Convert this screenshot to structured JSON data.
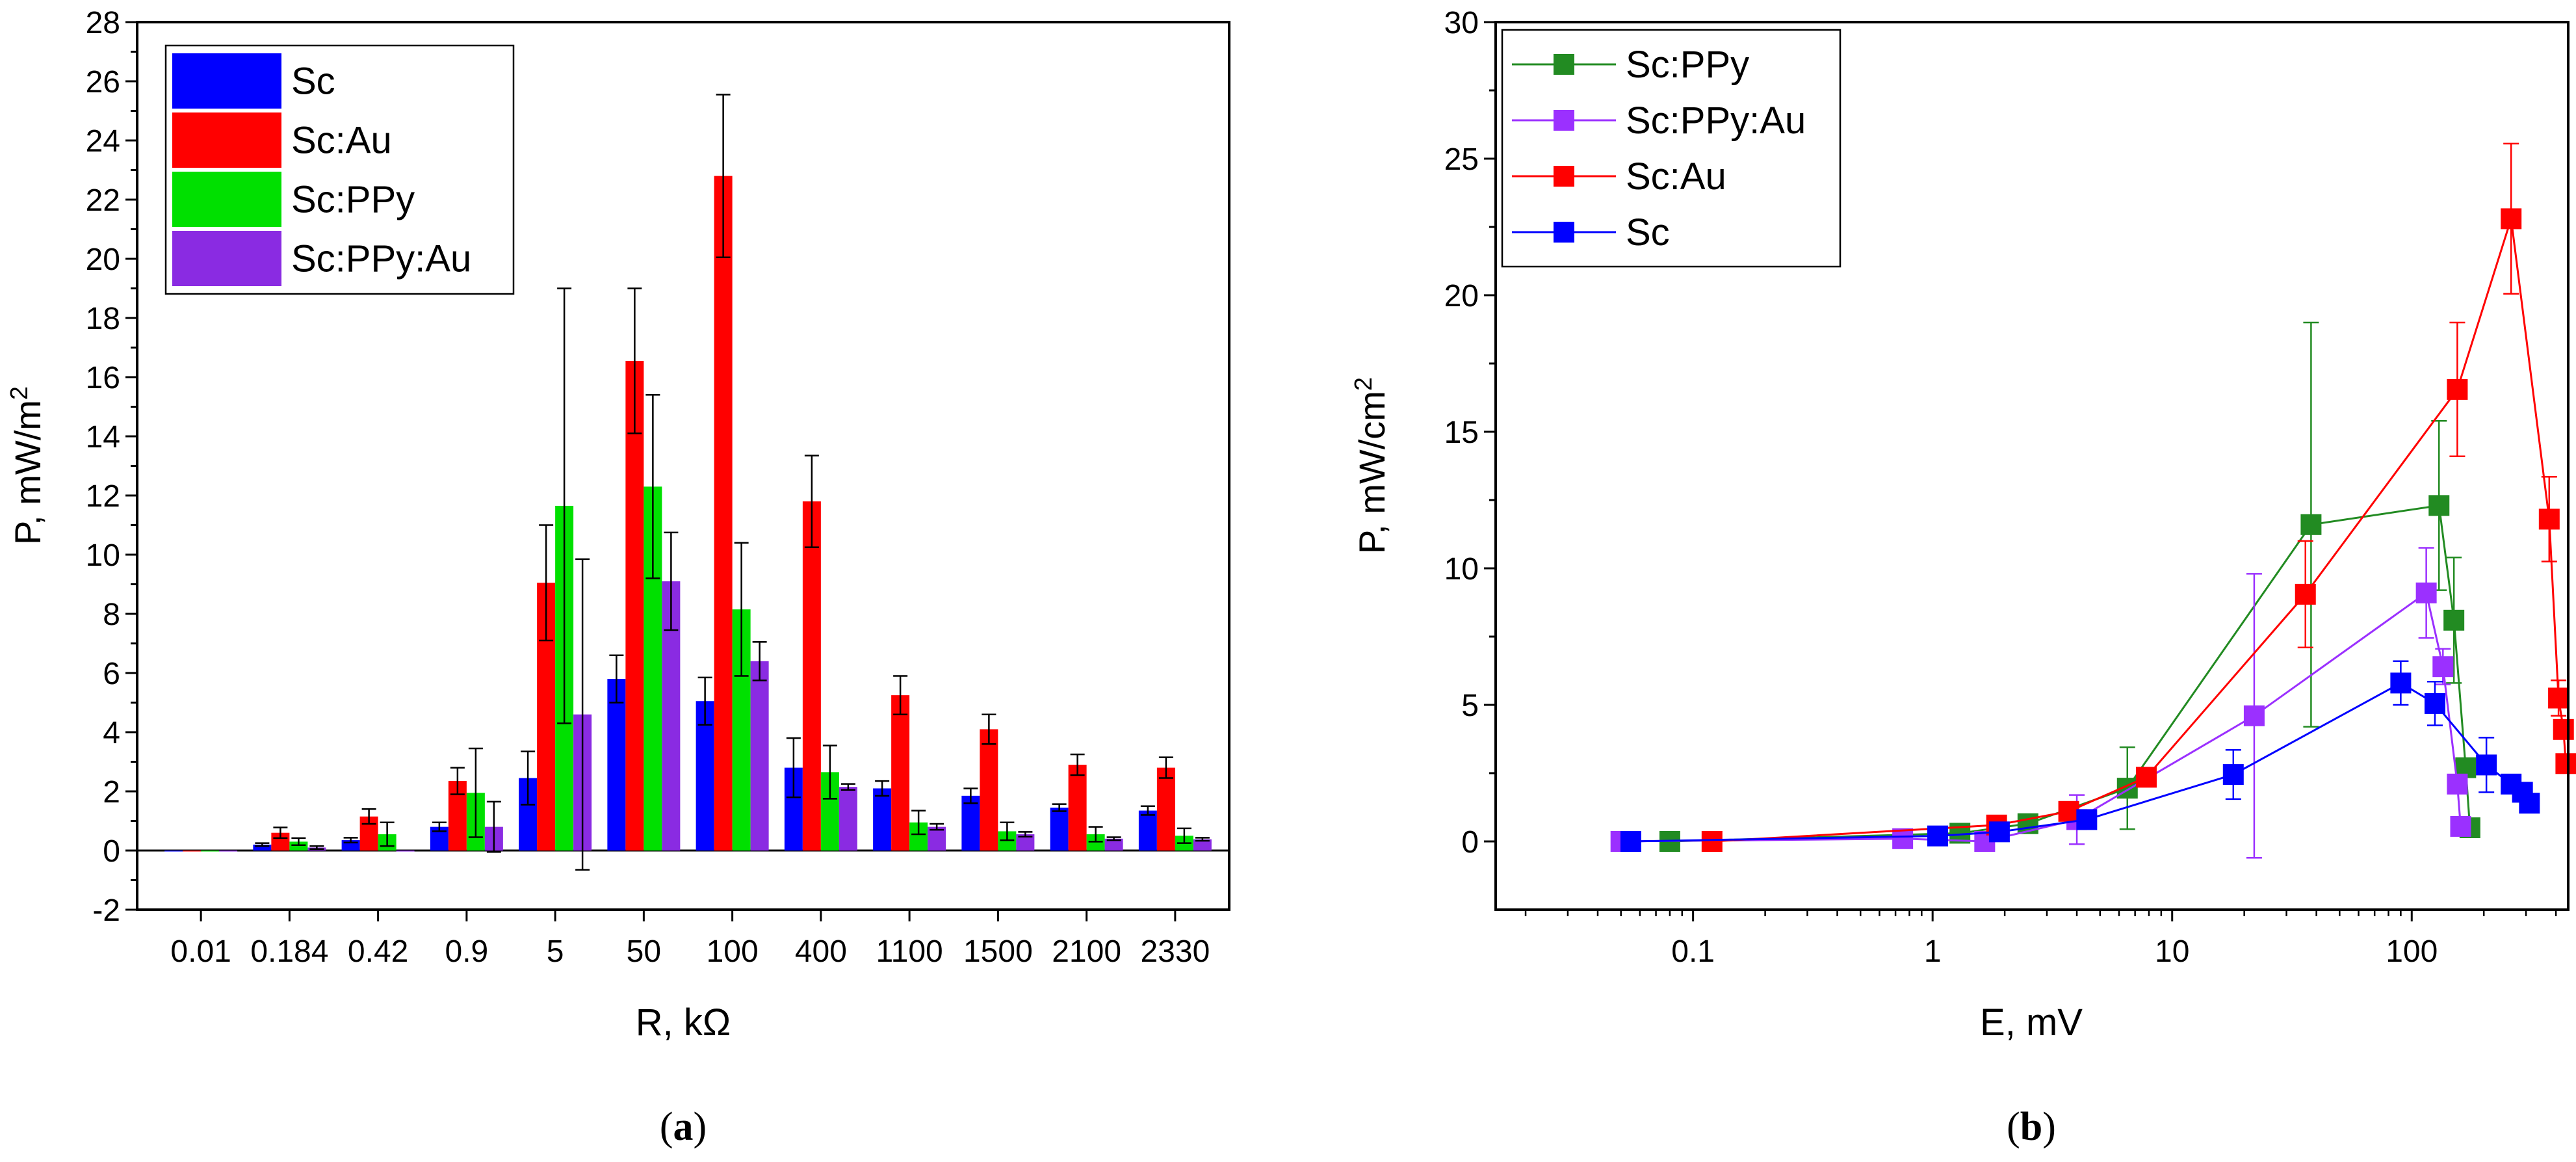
{
  "chart_data": [
    {
      "type": "bar",
      "panel_label": "a",
      "xlabel": "R, kΩ",
      "ylabel": "P, mW/m",
      "ylabel_sup": "2",
      "ylim": [
        -2,
        28
      ],
      "yticks": [
        -2,
        0,
        2,
        4,
        6,
        8,
        10,
        12,
        14,
        16,
        18,
        20,
        22,
        24,
        26,
        28
      ],
      "grid": false,
      "legend_position": "top-left",
      "categories": [
        "0.01",
        "0.184",
        "0.42",
        "0.9",
        "5",
        "50",
        "100",
        "400",
        "1100",
        "1500",
        "2100",
        "2330"
      ],
      "series": [
        {
          "name": "Sc",
          "color": "#0000ff",
          "values": [
            0.0,
            0.2,
            0.35,
            0.8,
            2.45,
            5.8,
            5.05,
            2.8,
            2.1,
            1.85,
            1.45,
            1.35
          ],
          "errors": [
            0.0,
            0.05,
            0.08,
            0.15,
            0.9,
            0.8,
            0.8,
            1.0,
            0.25,
            0.25,
            0.12,
            0.15
          ]
        },
        {
          "name": "Sc:Au",
          "color": "#ff0000",
          "values": [
            0.0,
            0.6,
            1.15,
            2.35,
            9.05,
            16.55,
            22.8,
            11.8,
            5.25,
            4.1,
            2.9,
            2.8
          ],
          "errors": [
            0.0,
            0.18,
            0.25,
            0.45,
            1.95,
            2.45,
            2.75,
            1.55,
            0.65,
            0.5,
            0.35,
            0.35
          ]
        },
        {
          "name": "Sc:PPy",
          "color": "#00e000",
          "values": [
            0.0,
            0.3,
            0.55,
            1.95,
            11.65,
            12.3,
            8.15,
            2.65,
            0.95,
            0.65,
            0.55,
            0.5
          ],
          "errors": [
            0.0,
            0.12,
            0.4,
            1.5,
            7.35,
            3.1,
            2.25,
            0.9,
            0.4,
            0.3,
            0.25,
            0.25
          ]
        },
        {
          "name": "Sc:PPy:Au",
          "color": "#8a2be2",
          "values": [
            0.0,
            0.1,
            0.0,
            0.8,
            4.6,
            9.1,
            6.4,
            2.15,
            0.8,
            0.55,
            0.4,
            0.38
          ],
          "errors": [
            0.0,
            0.05,
            0.0,
            0.85,
            5.25,
            1.65,
            0.65,
            0.1,
            0.1,
            0.08,
            0.05,
            0.05
          ]
        }
      ]
    },
    {
      "type": "line",
      "panel_label": "b",
      "xlabel": "E, mV",
      "ylabel": "P, mW/cm",
      "ylabel_sup": "2",
      "xscale": "log",
      "xlim": [
        0.015,
        450
      ],
      "ylim": [
        -2.5,
        30
      ],
      "xticks": [
        0.1,
        1,
        10,
        100
      ],
      "xtick_labels": [
        "0.1",
        "1",
        "10",
        "100"
      ],
      "yticks": [
        0,
        5,
        10,
        15,
        20,
        25,
        30
      ],
      "grid": false,
      "legend_position": "top-left",
      "series": [
        {
          "name": "Sc:PPy",
          "color": "#228b22",
          "x": [
            0.08,
            1.3,
            2.5,
            6.5,
            38,
            130,
            150,
            168,
            175
          ],
          "y": [
            0.0,
            0.3,
            0.65,
            1.95,
            11.6,
            12.3,
            8.1,
            2.7,
            0.5
          ],
          "err": [
            0,
            0,
            0,
            1.5,
            7.4,
            3.1,
            2.3,
            0,
            0
          ]
        },
        {
          "name": "Sc:PPy:Au",
          "color": "#9b30ff",
          "x": [
            0.05,
            0.75,
            1.65,
            4.0,
            22,
            115,
            135,
            155,
            160
          ],
          "y": [
            0.0,
            0.1,
            0.0,
            0.8,
            4.6,
            9.1,
            6.4,
            2.1,
            0.55
          ],
          "err": [
            0,
            0,
            0,
            0.9,
            5.2,
            1.65,
            0.65,
            0,
            0
          ]
        },
        {
          "name": "Sc:Au",
          "color": "#ff0000",
          "x": [
            0.12,
            1.85,
            3.7,
            7.8,
            36,
            155,
            260,
            375,
            410,
            430,
            440
          ],
          "y": [
            0.0,
            0.6,
            1.1,
            2.35,
            9.05,
            16.55,
            22.8,
            11.8,
            5.25,
            4.1,
            2.85
          ],
          "err": [
            0,
            0,
            0,
            0,
            1.95,
            2.45,
            2.75,
            1.55,
            0.65,
            0,
            0
          ]
        },
        {
          "name": "Sc",
          "color": "#0000ff",
          "x": [
            0.055,
            1.05,
            1.9,
            4.4,
            18,
            90,
            125,
            205,
            260,
            290,
            310
          ],
          "y": [
            0.0,
            0.2,
            0.35,
            0.8,
            2.45,
            5.8,
            5.05,
            2.8,
            2.1,
            1.8,
            1.4
          ],
          "err": [
            0,
            0,
            0,
            0,
            0.9,
            0.8,
            0.8,
            1.0,
            0,
            0,
            0
          ]
        }
      ]
    }
  ]
}
